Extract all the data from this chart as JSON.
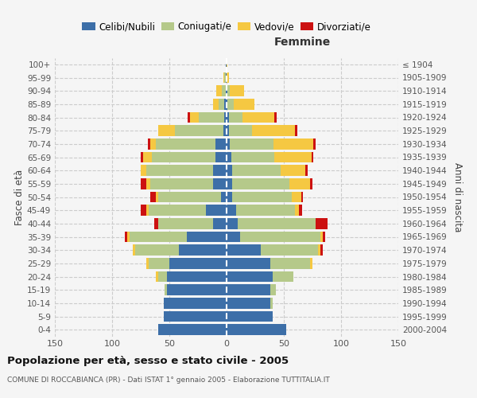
{
  "age_groups": [
    "0-4",
    "5-9",
    "10-14",
    "15-19",
    "20-24",
    "25-29",
    "30-34",
    "35-39",
    "40-44",
    "45-49",
    "50-54",
    "55-59",
    "60-64",
    "65-69",
    "70-74",
    "75-79",
    "80-84",
    "85-89",
    "90-94",
    "95-99",
    "100+"
  ],
  "birth_years": [
    "2000-2004",
    "1995-1999",
    "1990-1994",
    "1985-1989",
    "1980-1984",
    "1975-1979",
    "1970-1974",
    "1965-1969",
    "1960-1964",
    "1955-1959",
    "1950-1954",
    "1945-1949",
    "1940-1944",
    "1935-1939",
    "1930-1934",
    "1925-1929",
    "1920-1924",
    "1915-1919",
    "1910-1914",
    "1905-1909",
    "≤ 1904"
  ],
  "males": {
    "celibe": [
      60,
      55,
      55,
      52,
      52,
      50,
      42,
      35,
      12,
      18,
      5,
      12,
      12,
      10,
      10,
      3,
      2,
      2,
      1,
      1,
      1
    ],
    "coniugato": [
      0,
      0,
      0,
      2,
      8,
      18,
      38,
      50,
      48,
      50,
      55,
      55,
      58,
      55,
      52,
      42,
      22,
      5,
      3,
      1,
      0
    ],
    "vedovo": [
      0,
      0,
      0,
      0,
      2,
      2,
      2,
      2,
      0,
      2,
      2,
      3,
      5,
      8,
      5,
      15,
      8,
      5,
      5,
      1,
      0
    ],
    "divorziato": [
      0,
      0,
      0,
      0,
      0,
      0,
      0,
      2,
      3,
      5,
      5,
      5,
      0,
      2,
      2,
      0,
      2,
      0,
      0,
      0,
      0
    ]
  },
  "females": {
    "nubile": [
      52,
      40,
      38,
      38,
      40,
      38,
      30,
      12,
      10,
      8,
      5,
      5,
      5,
      4,
      3,
      2,
      2,
      1,
      1,
      0,
      0
    ],
    "coniugata": [
      0,
      0,
      2,
      5,
      18,
      35,
      50,
      70,
      68,
      52,
      52,
      50,
      42,
      38,
      38,
      20,
      12,
      5,
      2,
      0,
      0
    ],
    "vedova": [
      0,
      0,
      0,
      0,
      0,
      2,
      2,
      2,
      0,
      3,
      8,
      18,
      22,
      32,
      35,
      38,
      28,
      18,
      12,
      2,
      1
    ],
    "divorziata": [
      0,
      0,
      0,
      0,
      0,
      0,
      2,
      2,
      10,
      3,
      2,
      2,
      2,
      2,
      2,
      2,
      2,
      0,
      0,
      0,
      0
    ]
  },
  "colors": {
    "celibe": "#3d6fa8",
    "coniugato": "#b5c98a",
    "vedovo": "#f5c842",
    "divorziato": "#cc1111"
  },
  "xlim": 150,
  "title": "Popolazione per età, sesso e stato civile - 2005",
  "subtitle": "COMUNE DI ROCCABIANCA (PR) - Dati ISTAT 1° gennaio 2005 - Elaborazione TUTTITALIA.IT",
  "ylabel_left": "Fasce di età",
  "ylabel_right": "Anni di nascita",
  "bg_color": "#f5f5f5",
  "grid_color": "#cccccc",
  "legend_labels": [
    "Celibi/Nubili",
    "Coniugati/e",
    "Vedovi/e",
    "Divorziati/e"
  ]
}
